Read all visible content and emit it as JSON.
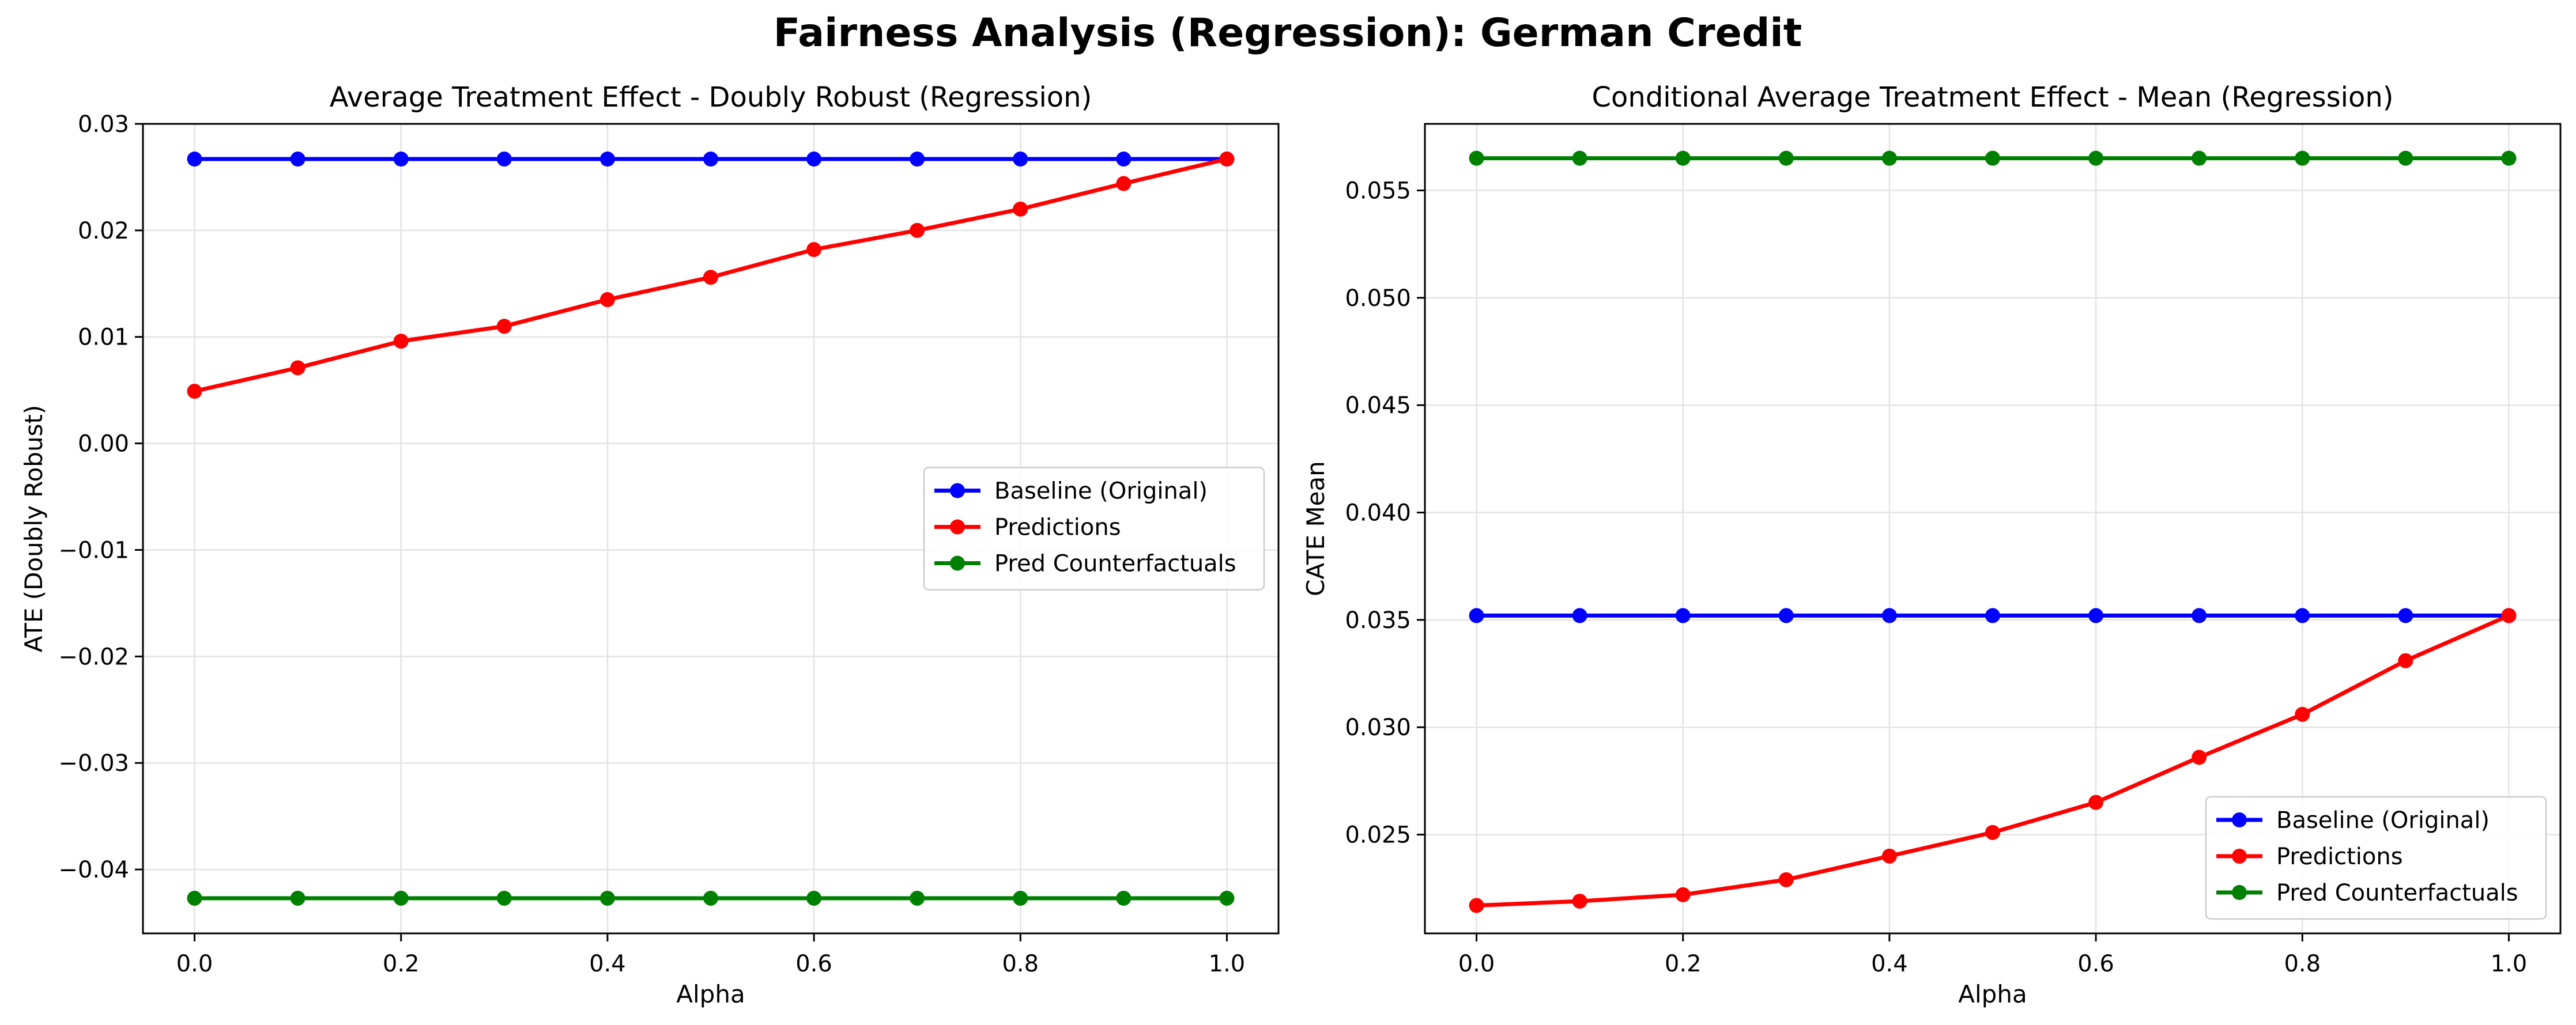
{
  "figure": {
    "title": "Fairness Analysis (Regression): German Credit"
  },
  "chart_data": [
    {
      "type": "line",
      "title": "Average Treatment Effect - Doubly Robust (Regression)",
      "xlabel": "Alpha",
      "ylabel": "ATE (Doubly Robust)",
      "x": [
        0.0,
        0.1,
        0.2,
        0.3,
        0.4,
        0.5,
        0.6,
        0.7,
        0.8,
        0.9,
        1.0
      ],
      "xlim": [
        -0.05,
        1.05
      ],
      "ylim": [
        -0.046,
        0.03
      ],
      "xticks": [
        0.0,
        0.2,
        0.4,
        0.6,
        0.8,
        1.0
      ],
      "xtick_labels": [
        "0.0",
        "0.2",
        "0.4",
        "0.6",
        "0.8",
        "1.0"
      ],
      "yticks": [
        -0.04,
        -0.03,
        -0.02,
        -0.01,
        0.0,
        0.01,
        0.02,
        0.03
      ],
      "ytick_labels": [
        "−0.04",
        "−0.03",
        "−0.02",
        "−0.01",
        "0.00",
        "0.01",
        "0.02",
        "0.03"
      ],
      "grid": true,
      "legend_position": "center-right",
      "series": [
        {
          "name": "Baseline (Original)",
          "color": "#0000ff",
          "marker": "circle",
          "values": [
            0.0267,
            0.0267,
            0.0267,
            0.0267,
            0.0267,
            0.0267,
            0.0267,
            0.0267,
            0.0267,
            0.0267,
            0.0267
          ]
        },
        {
          "name": "Predictions",
          "color": "#ff0000",
          "marker": "circle",
          "values": [
            0.0049,
            0.0071,
            0.0096,
            0.011,
            0.0135,
            0.0156,
            0.0182,
            0.02,
            0.022,
            0.0244,
            0.0267
          ]
        },
        {
          "name": "Pred Counterfactuals",
          "color": "#008000",
          "marker": "circle",
          "values": [
            -0.0427,
            -0.0427,
            -0.0427,
            -0.0427,
            -0.0427,
            -0.0427,
            -0.0427,
            -0.0427,
            -0.0427,
            -0.0427,
            -0.0427
          ]
        }
      ]
    },
    {
      "type": "line",
      "title": "Conditional Average Treatment Effect - Mean (Regression)",
      "xlabel": "Alpha",
      "ylabel": "CATE Mean",
      "x": [
        0.0,
        0.1,
        0.2,
        0.3,
        0.4,
        0.5,
        0.6,
        0.7,
        0.8,
        0.9,
        1.0
      ],
      "xlim": [
        -0.05,
        1.05
      ],
      "ylim": [
        0.0204,
        0.0581
      ],
      "xticks": [
        0.0,
        0.2,
        0.4,
        0.6,
        0.8,
        1.0
      ],
      "xtick_labels": [
        "0.0",
        "0.2",
        "0.4",
        "0.6",
        "0.8",
        "1.0"
      ],
      "yticks": [
        0.025,
        0.03,
        0.035,
        0.04,
        0.045,
        0.05,
        0.055
      ],
      "ytick_labels": [
        "0.025",
        "0.030",
        "0.035",
        "0.040",
        "0.045",
        "0.050",
        "0.055"
      ],
      "grid": true,
      "legend_position": "bottom-right",
      "series": [
        {
          "name": "Baseline (Original)",
          "color": "#0000ff",
          "marker": "circle",
          "values": [
            0.0352,
            0.0352,
            0.0352,
            0.0352,
            0.0352,
            0.0352,
            0.0352,
            0.0352,
            0.0352,
            0.0352,
            0.0352
          ]
        },
        {
          "name": "Predictions",
          "color": "#ff0000",
          "marker": "circle",
          "values": [
            0.0217,
            0.0219,
            0.0222,
            0.0229,
            0.024,
            0.0251,
            0.0265,
            0.0286,
            0.0306,
            0.0331,
            0.0352
          ]
        },
        {
          "name": "Pred Counterfactuals",
          "color": "#008000",
          "marker": "circle",
          "values": [
            0.0565,
            0.0565,
            0.0565,
            0.0565,
            0.0565,
            0.0565,
            0.0565,
            0.0565,
            0.0565,
            0.0565,
            0.0565
          ]
        }
      ]
    }
  ]
}
